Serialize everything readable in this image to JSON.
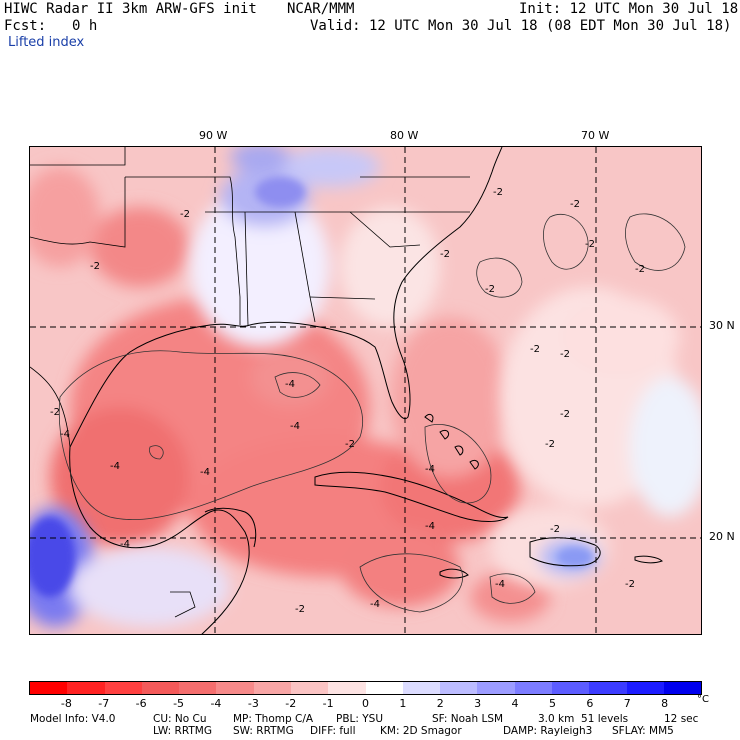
{
  "header": {
    "model_title": "HIWC Radar II 3km ARW-GFS init",
    "org": "NCAR/MMM",
    "init": "Init: 12 UTC Mon 30 Jul 18",
    "fcst_label": "Fcst:",
    "fcst_value": "0 h",
    "valid": "Valid: 12 UTC Mon 30 Jul 18 (08 EDT Mon 30 Jul 18)",
    "field": "Lifted index"
  },
  "map": {
    "lon_labels": [
      "90 W",
      "80 W",
      "70 W"
    ],
    "lat_labels": [
      "30 N",
      "20 N"
    ],
    "contour_labels": [
      "-2",
      "-4"
    ]
  },
  "colorbar": {
    "ticks": [
      "-8",
      "-7",
      "-6",
      "-5",
      "-4",
      "-3",
      "-2",
      "-1",
      "0",
      "1",
      "2",
      "3",
      "4",
      "5",
      "6",
      "7",
      "8"
    ],
    "unit": "°C",
    "colors": [
      "#ff0000",
      "#ff2222",
      "#ff4040",
      "#f45a5a",
      "#f46e6e",
      "#f68a8a",
      "#f8a6a6",
      "#fbc4c4",
      "#fde3e3",
      "#ffffff",
      "#dcdcff",
      "#bcbcff",
      "#9c9cff",
      "#7c7cff",
      "#5c5cff",
      "#3c3cff",
      "#1c1cff",
      "#0000ee"
    ]
  },
  "footer": {
    "line1": [
      "Model Info: V4.0",
      "CU: No Cu",
      "MP: Thomp C/A",
      "PBL: YSU",
      "SF: Noah LSM",
      "3.0 km  51 levels",
      "12 sec"
    ],
    "line2": [
      "LW: RRTMG",
      "SW: RRTMG",
      "DIFF: full",
      "KM: 2D Smagor",
      "DAMP: Rayleigh3",
      "SFLAY: MM5"
    ]
  }
}
